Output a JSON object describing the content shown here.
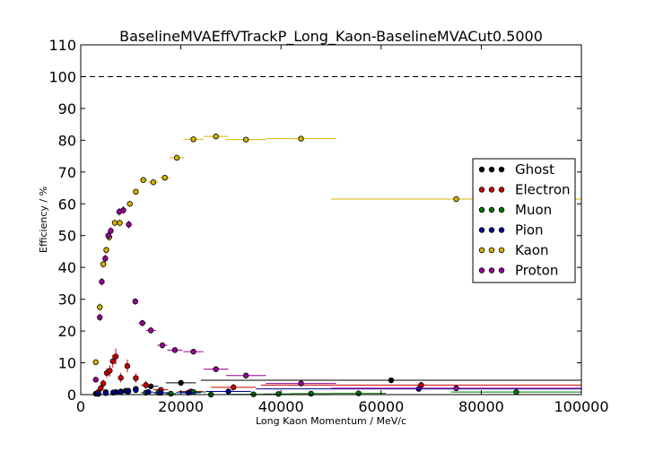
{
  "chart_data": {
    "type": "scatter",
    "title": "BaselineMVAEffVTrackP_Long_Kaon-BaselineMVACut0.5000",
    "xlabel": "Long Kaon Momentum / MeV/c",
    "ylabel": "Efficiency / %",
    "xlim": [
      0,
      100000
    ],
    "ylim": [
      0,
      110
    ],
    "xticks": [
      "0",
      "20000",
      "40000",
      "60000",
      "80000",
      "100000"
    ],
    "yticks": [
      "0",
      "10",
      "20",
      "30",
      "40",
      "50",
      "60",
      "70",
      "80",
      "90",
      "100",
      "110"
    ],
    "reference_line": {
      "y": 100,
      "style": "dashed"
    },
    "legend_position": "right",
    "series": [
      {
        "name": "Ghost",
        "color": "#000000",
        "points": [
          {
            "x": 3000,
            "y": 0.3,
            "xerr": 500,
            "yerr": 0.2
          },
          {
            "x": 5000,
            "y": 0.5,
            "xerr": 500,
            "yerr": 0.3
          },
          {
            "x": 7000,
            "y": 0.8,
            "xerr": 500,
            "yerr": 0.3
          },
          {
            "x": 9000,
            "y": 1.2,
            "xerr": 500,
            "yerr": 0.4
          },
          {
            "x": 11000,
            "y": 1.8,
            "xerr": 500,
            "yerr": 0.5
          },
          {
            "x": 14000,
            "y": 2.6,
            "xerr": 1500,
            "yerr": 0.6
          },
          {
            "x": 20000,
            "y": 3.7,
            "xerr": 3000,
            "yerr": 0.7
          },
          {
            "x": 62000,
            "y": 4.5,
            "xerr": 38000,
            "yerr": 0.6
          }
        ]
      },
      {
        "name": "Electron",
        "color": "#cc0000",
        "points": [
          {
            "x": 3500,
            "y": 0.8,
            "xerr": 500,
            "yerr": 0.5
          },
          {
            "x": 4000,
            "y": 2.0,
            "xerr": 300,
            "yerr": 1.0
          },
          {
            "x": 4500,
            "y": 3.5,
            "xerr": 300,
            "yerr": 1.2
          },
          {
            "x": 5200,
            "y": 6.8,
            "xerr": 300,
            "yerr": 1.5
          },
          {
            "x": 5800,
            "y": 7.5,
            "xerr": 300,
            "yerr": 1.8
          },
          {
            "x": 6400,
            "y": 10.5,
            "xerr": 300,
            "yerr": 2.0
          },
          {
            "x": 7000,
            "y": 12.0,
            "xerr": 300,
            "yerr": 2.5
          },
          {
            "x": 8000,
            "y": 5.3,
            "xerr": 500,
            "yerr": 1.5
          },
          {
            "x": 9300,
            "y": 9.0,
            "xerr": 500,
            "yerr": 2.0
          },
          {
            "x": 11000,
            "y": 5.2,
            "xerr": 500,
            "yerr": 1.5
          },
          {
            "x": 13000,
            "y": 3.0,
            "xerr": 1000,
            "yerr": 1.2
          },
          {
            "x": 16000,
            "y": 1.5,
            "xerr": 1500,
            "yerr": 0.8
          },
          {
            "x": 22000,
            "y": 1.0,
            "xerr": 2500,
            "yerr": 0.6
          },
          {
            "x": 30500,
            "y": 2.3,
            "xerr": 4500,
            "yerr": 1.0
          },
          {
            "x": 68000,
            "y": 3.0,
            "xerr": 32000,
            "yerr": 1.0
          }
        ]
      },
      {
        "name": "Muon",
        "color": "#007700",
        "points": [
          {
            "x": 3500,
            "y": 0.2,
            "xerr": 500,
            "yerr": 0.2
          },
          {
            "x": 5000,
            "y": 0.8,
            "xerr": 500,
            "yerr": 0.4
          },
          {
            "x": 6500,
            "y": 0.6,
            "xerr": 500,
            "yerr": 0.4
          },
          {
            "x": 8000,
            "y": 1.0,
            "xerr": 500,
            "yerr": 0.4
          },
          {
            "x": 9500,
            "y": 1.2,
            "xerr": 500,
            "yerr": 0.4
          },
          {
            "x": 11000,
            "y": 1.4,
            "xerr": 500,
            "yerr": 0.4
          },
          {
            "x": 13000,
            "y": 0.6,
            "xerr": 1000,
            "yerr": 0.3
          },
          {
            "x": 15500,
            "y": 0.6,
            "xerr": 1000,
            "yerr": 0.3
          },
          {
            "x": 18000,
            "y": 0.3,
            "xerr": 1000,
            "yerr": 0.2
          },
          {
            "x": 22500,
            "y": 0.8,
            "xerr": 2500,
            "yerr": 0.3
          },
          {
            "x": 26000,
            "y": 0.0,
            "xerr": 2000,
            "yerr": 0.2
          },
          {
            "x": 34500,
            "y": 0.1,
            "xerr": 4500,
            "yerr": 0.2
          },
          {
            "x": 39500,
            "y": 0.2,
            "xerr": 3000,
            "yerr": 0.2
          },
          {
            "x": 46000,
            "y": 0.3,
            "xerr": 4000,
            "yerr": 0.2
          },
          {
            "x": 55500,
            "y": 0.4,
            "xerr": 5500,
            "yerr": 0.2
          },
          {
            "x": 87000,
            "y": 0.8,
            "xerr": 13000,
            "yerr": 0.3
          }
        ]
      },
      {
        "name": "Pion",
        "color": "#000099",
        "points": [
          {
            "x": 3500,
            "y": 0.3,
            "xerr": 500,
            "yerr": 0.2
          },
          {
            "x": 5000,
            "y": 0.5,
            "xerr": 500,
            "yerr": 0.2
          },
          {
            "x": 6500,
            "y": 0.7,
            "xerr": 500,
            "yerr": 0.2
          },
          {
            "x": 8000,
            "y": 0.8,
            "xerr": 500,
            "yerr": 0.2
          },
          {
            "x": 9500,
            "y": 1.0,
            "xerr": 500,
            "yerr": 0.2
          },
          {
            "x": 11000,
            "y": 1.5,
            "xerr": 500,
            "yerr": 0.3
          },
          {
            "x": 13500,
            "y": 0.8,
            "xerr": 1000,
            "yerr": 0.3
          },
          {
            "x": 16000,
            "y": 0.6,
            "xerr": 1500,
            "yerr": 0.3
          },
          {
            "x": 21500,
            "y": 0.6,
            "xerr": 2500,
            "yerr": 0.3
          },
          {
            "x": 29500,
            "y": 1.0,
            "xerr": 4500,
            "yerr": 0.3
          },
          {
            "x": 67500,
            "y": 1.8,
            "xerr": 32500,
            "yerr": 0.3
          }
        ]
      },
      {
        "name": "Kaon",
        "color": "#d4b400",
        "points": [
          {
            "x": 3000,
            "y": 10.2,
            "xerr": 300,
            "yerr": 0.8
          },
          {
            "x": 3800,
            "y": 27.5,
            "xerr": 300,
            "yerr": 1.2
          },
          {
            "x": 4500,
            "y": 41.0,
            "xerr": 300,
            "yerr": 1.2
          },
          {
            "x": 5100,
            "y": 45.5,
            "xerr": 300,
            "yerr": 1.2
          },
          {
            "x": 5700,
            "y": 49.5,
            "xerr": 300,
            "yerr": 1.2
          },
          {
            "x": 6800,
            "y": 54.0,
            "xerr": 500,
            "yerr": 1.2
          },
          {
            "x": 7800,
            "y": 54.0,
            "xerr": 500,
            "yerr": 1.2
          },
          {
            "x": 9800,
            "y": 60.0,
            "xerr": 500,
            "yerr": 1.0
          },
          {
            "x": 11000,
            "y": 63.8,
            "xerr": 500,
            "yerr": 1.0
          },
          {
            "x": 12500,
            "y": 67.5,
            "xerr": 750,
            "yerr": 1.0
          },
          {
            "x": 14500,
            "y": 66.8,
            "xerr": 1000,
            "yerr": 1.0
          },
          {
            "x": 16800,
            "y": 68.2,
            "xerr": 1000,
            "yerr": 1.0
          },
          {
            "x": 19200,
            "y": 74.5,
            "xerr": 1500,
            "yerr": 0.8
          },
          {
            "x": 22500,
            "y": 80.3,
            "xerr": 2000,
            "yerr": 0.8
          },
          {
            "x": 27000,
            "y": 81.2,
            "xerr": 2500,
            "yerr": 0.8
          },
          {
            "x": 33000,
            "y": 80.2,
            "xerr": 4000,
            "yerr": 0.8
          },
          {
            "x": 44000,
            "y": 80.5,
            "xerr": 7000,
            "yerr": 0.8
          },
          {
            "x": 75000,
            "y": 61.5,
            "xerr": 25000,
            "yerr": 1.0
          }
        ]
      },
      {
        "name": "Proton",
        "color": "#990099",
        "points": [
          {
            "x": 3000,
            "y": 4.7,
            "xerr": 300,
            "yerr": 0.7
          },
          {
            "x": 3800,
            "y": 24.3,
            "xerr": 300,
            "yerr": 1.2
          },
          {
            "x": 4200,
            "y": 35.5,
            "xerr": 300,
            "yerr": 1.2
          },
          {
            "x": 4900,
            "y": 42.8,
            "xerr": 300,
            "yerr": 1.2
          },
          {
            "x": 5500,
            "y": 50.0,
            "xerr": 300,
            "yerr": 1.2
          },
          {
            "x": 6000,
            "y": 51.5,
            "xerr": 300,
            "yerr": 1.2
          },
          {
            "x": 7700,
            "y": 57.5,
            "xerr": 500,
            "yerr": 1.2
          },
          {
            "x": 8500,
            "y": 58.0,
            "xerr": 500,
            "yerr": 1.2
          },
          {
            "x": 9600,
            "y": 53.5,
            "xerr": 500,
            "yerr": 1.2
          },
          {
            "x": 10900,
            "y": 29.3,
            "xerr": 500,
            "yerr": 1.0
          },
          {
            "x": 12300,
            "y": 22.5,
            "xerr": 750,
            "yerr": 1.0
          },
          {
            "x": 14000,
            "y": 20.2,
            "xerr": 1000,
            "yerr": 1.0
          },
          {
            "x": 16300,
            "y": 15.5,
            "xerr": 1000,
            "yerr": 1.0
          },
          {
            "x": 18800,
            "y": 14.0,
            "xerr": 1500,
            "yerr": 0.8
          },
          {
            "x": 22500,
            "y": 13.5,
            "xerr": 2000,
            "yerr": 0.8
          },
          {
            "x": 27000,
            "y": 8.0,
            "xerr": 2500,
            "yerr": 0.8
          },
          {
            "x": 33000,
            "y": 6.0,
            "xerr": 4000,
            "yerr": 0.8
          },
          {
            "x": 44000,
            "y": 3.5,
            "xerr": 7000,
            "yerr": 0.6
          },
          {
            "x": 75000,
            "y": 2.0,
            "xerr": 25000,
            "yerr": 0.5
          }
        ]
      }
    ]
  }
}
